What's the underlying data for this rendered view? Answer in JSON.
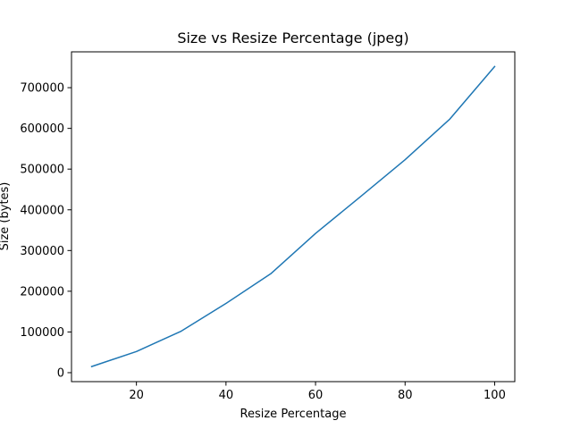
{
  "chart_data": {
    "type": "line",
    "title": "Size vs Resize Percentage (jpeg)",
    "xlabel": "Resize Percentage",
    "ylabel": "Size (bytes)",
    "xlim": [
      5.5,
      104.5
    ],
    "ylim": [
      -22000,
      788000
    ],
    "xticks": [
      20,
      40,
      60,
      80,
      100
    ],
    "yticks": [
      0,
      100000,
      200000,
      300000,
      400000,
      500000,
      600000,
      700000
    ],
    "grid": false,
    "series": [
      {
        "color": "#1f77b4",
        "x": [
          10,
          20,
          30,
          40,
          50,
          60,
          70,
          80,
          90,
          100
        ],
        "y": [
          15000,
          52000,
          102000,
          170000,
          243000,
          342000,
          432000,
          523000,
          623000,
          752000
        ]
      }
    ]
  }
}
